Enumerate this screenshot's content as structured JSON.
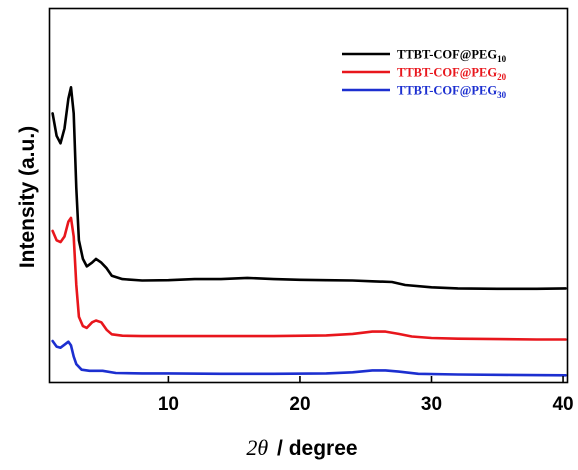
{
  "chart_data": {
    "type": "line",
    "xlabel_symbol": "2θ",
    "xlabel_unit": "/ degree",
    "ylabel": "Intensity (a.u.)",
    "xlim": [
      1,
      40.3
    ],
    "ylim": [
      0,
      100
    ],
    "xticks": [
      10,
      20,
      30,
      40
    ],
    "grid": false,
    "legend_position": "top-right",
    "series": [
      {
        "name_base": "TTBT-COF@PEG",
        "name_sub": "10",
        "color": "#000000",
        "points": [
          [
            1.2,
            72
          ],
          [
            1.5,
            66
          ],
          [
            1.8,
            64
          ],
          [
            2.1,
            68
          ],
          [
            2.4,
            76
          ],
          [
            2.6,
            79
          ],
          [
            2.8,
            72
          ],
          [
            3.0,
            52
          ],
          [
            3.2,
            38
          ],
          [
            3.5,
            33
          ],
          [
            3.8,
            31
          ],
          [
            4.2,
            32
          ],
          [
            4.5,
            33
          ],
          [
            4.9,
            32
          ],
          [
            5.3,
            30.5
          ],
          [
            5.7,
            28.5
          ],
          [
            6.5,
            27.6
          ],
          [
            8,
            27.2
          ],
          [
            10,
            27.3
          ],
          [
            12,
            27.6
          ],
          [
            14,
            27.6
          ],
          [
            16,
            27.9
          ],
          [
            18,
            27.6
          ],
          [
            20,
            27.4
          ],
          [
            22,
            27.3
          ],
          [
            24,
            27.2
          ],
          [
            25.5,
            27.0
          ],
          [
            27,
            26.8
          ],
          [
            28,
            26.0
          ],
          [
            30,
            25.4
          ],
          [
            32,
            25.1
          ],
          [
            35,
            25.0
          ],
          [
            38,
            25.0
          ],
          [
            40.2,
            25.1
          ]
        ]
      },
      {
        "name_base": "TTBT-COF@PEG",
        "name_sub": "20",
        "color": "#e8161c",
        "points": [
          [
            1.2,
            40.5
          ],
          [
            1.5,
            38
          ],
          [
            1.8,
            37.5
          ],
          [
            2.1,
            39
          ],
          [
            2.4,
            43
          ],
          [
            2.6,
            44
          ],
          [
            2.8,
            39
          ],
          [
            3.0,
            26
          ],
          [
            3.2,
            17.5
          ],
          [
            3.5,
            15
          ],
          [
            3.8,
            14.5
          ],
          [
            4.2,
            16
          ],
          [
            4.5,
            16.5
          ],
          [
            4.9,
            16
          ],
          [
            5.3,
            14
          ],
          [
            5.7,
            12.8
          ],
          [
            6.5,
            12.4
          ],
          [
            8,
            12.3
          ],
          [
            10,
            12.3
          ],
          [
            14,
            12.3
          ],
          [
            18,
            12.3
          ],
          [
            22,
            12.5
          ],
          [
            24,
            12.9
          ],
          [
            25.5,
            13.5
          ],
          [
            26.5,
            13.5
          ],
          [
            27.5,
            12.9
          ],
          [
            28.5,
            12.2
          ],
          [
            30,
            11.8
          ],
          [
            32,
            11.6
          ],
          [
            35,
            11.5
          ],
          [
            38,
            11.4
          ],
          [
            40.2,
            11.4
          ]
        ]
      },
      {
        "name_base": "TTBT-COF@PEG",
        "name_sub": "30",
        "color": "#1c2fd0",
        "points": [
          [
            1.2,
            11
          ],
          [
            1.5,
            9.5
          ],
          [
            1.8,
            9.2
          ],
          [
            2.1,
            10
          ],
          [
            2.4,
            10.8
          ],
          [
            2.6,
            9.8
          ],
          [
            2.8,
            6.8
          ],
          [
            3.0,
            4.8
          ],
          [
            3.4,
            3.3
          ],
          [
            4.0,
            3.0
          ],
          [
            5.0,
            3.0
          ],
          [
            6.0,
            2.4
          ],
          [
            8,
            2.3
          ],
          [
            10,
            2.3
          ],
          [
            14,
            2.2
          ],
          [
            18,
            2.2
          ],
          [
            22,
            2.3
          ],
          [
            24,
            2.6
          ],
          [
            25.5,
            3.1
          ],
          [
            26.5,
            3.1
          ],
          [
            27.5,
            2.8
          ],
          [
            29,
            2.2
          ],
          [
            32,
            2.0
          ],
          [
            36,
            1.9
          ],
          [
            40.2,
            1.8
          ]
        ]
      }
    ]
  }
}
